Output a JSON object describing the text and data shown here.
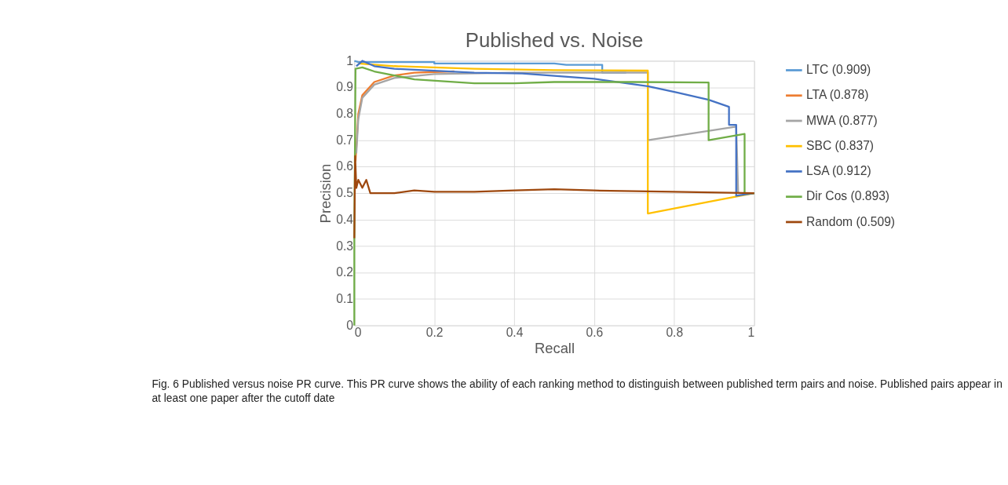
{
  "chart_data": {
    "type": "line",
    "title": "Published vs. Noise",
    "xlabel": "Recall",
    "ylabel": "Precision",
    "xlim": [
      0,
      1
    ],
    "ylim": [
      0,
      1
    ],
    "xticks": [
      0,
      0.2,
      0.4,
      0.6,
      0.8,
      1
    ],
    "yticks": [
      0,
      0.1,
      0.2,
      0.3,
      0.4,
      0.5,
      0.6,
      0.7,
      0.8,
      0.9,
      1
    ],
    "grid": true,
    "legend": "right",
    "marker": "none",
    "line_style": "solid",
    "annotations": [
      "Fig. 6 Published versus noise PR curve. This PR curve shows the ability of each ranking method to distinguish between published term pairs and noise. Published pairs appear in at least one paper after the cutoff date"
    ],
    "series": [
      {
        "name": "LTC (0.909)",
        "color": "#5b9bd5",
        "x": [
          0,
          0.01,
          0.2,
          0.2,
          0.5,
          0.53,
          0.62,
          0.62,
          0.68
        ],
        "values": [
          1,
          0.995,
          0.995,
          0.99,
          0.99,
          0.985,
          0.985,
          0.955,
          0.955
        ]
      },
      {
        "name": "LTA (0.878)",
        "color": "#ed7d31",
        "x": [
          0.003,
          0.01,
          0.02,
          0.05,
          0.1,
          0.15,
          0.25
        ],
        "values": [
          0.62,
          0.8,
          0.87,
          0.92,
          0.945,
          0.955,
          0.96
        ]
      },
      {
        "name": "MWA (0.877)",
        "color": "#a5a5a5",
        "x": [
          0.005,
          0.01,
          0.02,
          0.05,
          0.1,
          0.2,
          0.4,
          0.734,
          0.734,
          0.955,
          0.96,
          1
        ],
        "values": [
          0.65,
          0.78,
          0.86,
          0.91,
          0.935,
          0.95,
          0.955,
          0.956,
          0.7,
          0.751,
          0.5,
          0.5
        ]
      },
      {
        "name": "SBC (0.837)",
        "color": "#ffc000",
        "x": [
          0.01,
          0.1,
          0.3,
          0.5,
          0.734,
          0.734,
          0.951,
          1
        ],
        "values": [
          0.99,
          0.98,
          0.97,
          0.965,
          0.963,
          0.423,
          0.486,
          0.5
        ]
      },
      {
        "name": "LSA (0.912)",
        "color": "#4472c4",
        "x": [
          0.005,
          0.02,
          0.05,
          0.1,
          0.3,
          0.42,
          0.6,
          0.734,
          0.807,
          0.886,
          0.937,
          0.937,
          0.955,
          0.955,
          1
        ],
        "values": [
          0.98,
          1,
          0.98,
          0.97,
          0.955,
          0.952,
          0.932,
          0.904,
          0.88,
          0.853,
          0.826,
          0.758,
          0.758,
          0.49,
          0.5
        ]
      },
      {
        "name": "Dir Cos (0.893)",
        "color": "#70ad47",
        "x": [
          0,
          0,
          0.003,
          0.02,
          0.05,
          0.1,
          0.15,
          0.3,
          0.4,
          0.5,
          0.7,
          0.886,
          0.886,
          0.976,
          0.976,
          1
        ],
        "values": [
          0,
          0.33,
          0.97,
          0.975,
          0.96,
          0.945,
          0.93,
          0.915,
          0.915,
          0.92,
          0.92,
          0.918,
          0.7,
          0.724,
          0.5,
          0.5
        ]
      },
      {
        "name": "Random (0.509)",
        "color": "#9e480e",
        "x": [
          0,
          0.002,
          0.005,
          0.01,
          0.02,
          0.03,
          0.04,
          0.06,
          0.1,
          0.15,
          0.2,
          0.3,
          0.4,
          0.5,
          0.6,
          0.8,
          1
        ],
        "values": [
          0.33,
          0.64,
          0.52,
          0.55,
          0.52,
          0.55,
          0.5,
          0.5,
          0.5,
          0.51,
          0.505,
          0.505,
          0.51,
          0.515,
          0.51,
          0.505,
          0.5
        ]
      }
    ]
  }
}
